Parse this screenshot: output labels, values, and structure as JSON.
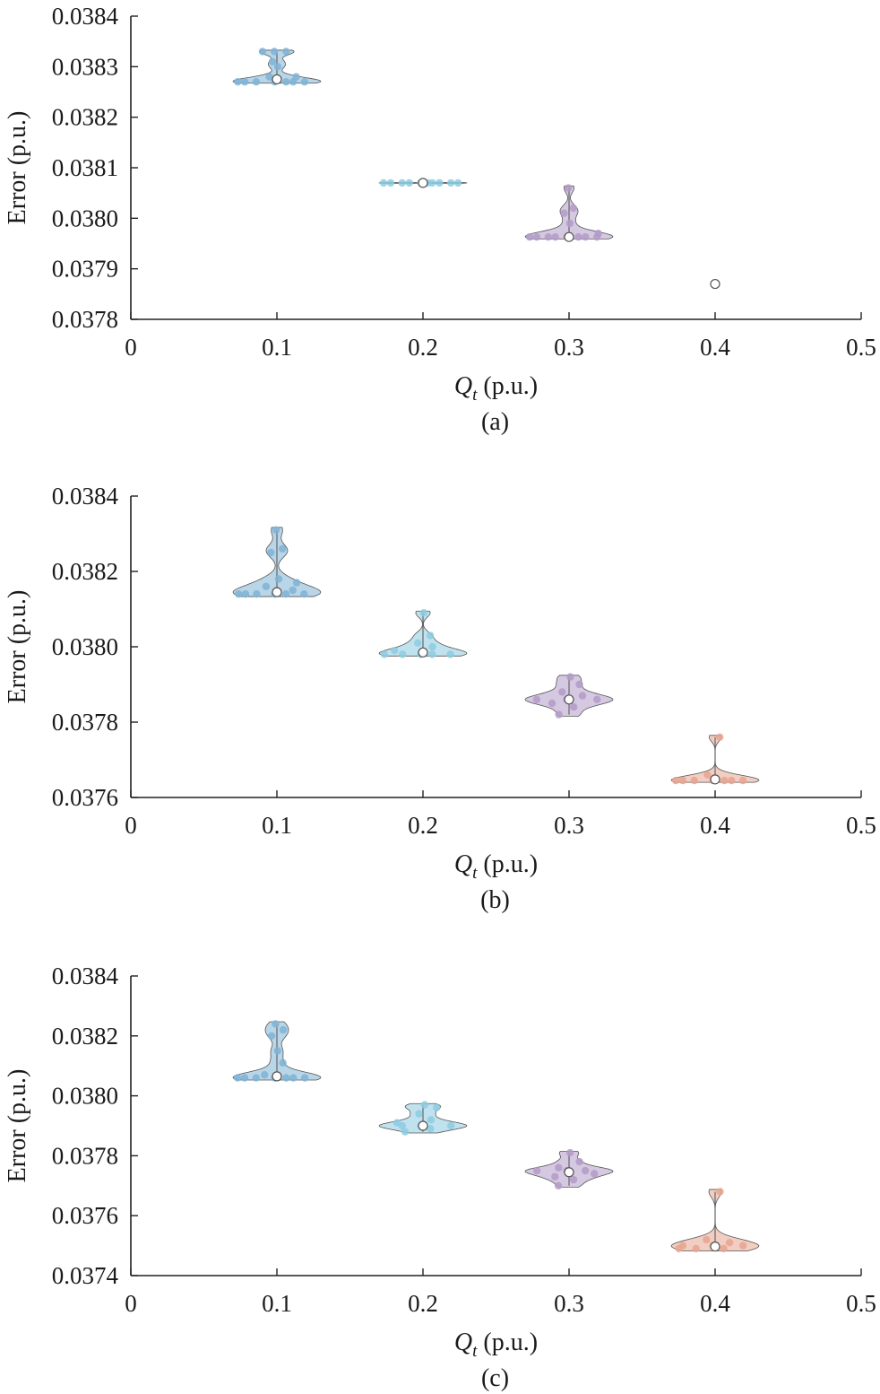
{
  "chart_data": [
    {
      "type": "violin",
      "panel_label": "(a)",
      "xlabel_symbol": "Q",
      "xlabel_subscript": "t",
      "xlabel_unit": " (p.u.)",
      "ylabel": "Error (p.u.)",
      "xlim": [
        0,
        0.5
      ],
      "ylim": [
        0.0378,
        0.0384
      ],
      "xticks": [
        "0",
        "0.1",
        "0.2",
        "0.3",
        "0.4",
        "0.5"
      ],
      "yticks": [
        "0.0378",
        "0.0379",
        "0.0380",
        "0.0381",
        "0.0382",
        "0.0383",
        "0.0384"
      ],
      "series": [
        {
          "x": 0.1,
          "color": "#7fb3d5",
          "median": 0.038275,
          "points": [
            0.03827,
            0.03827,
            0.03827,
            0.03827,
            0.03827,
            0.03827,
            0.03827,
            0.03828,
            0.03828,
            0.0383,
            0.03831,
            0.03833,
            0.03833,
            0.03833
          ]
        },
        {
          "x": 0.2,
          "color": "#8ccbe0",
          "median": 0.03807,
          "points": [
            0.03807,
            0.03807,
            0.03807,
            0.03807,
            0.03807,
            0.03807,
            0.03807,
            0.03807,
            0.03807,
            0.03807
          ]
        },
        {
          "x": 0.3,
          "color": "#b39bc8",
          "median": 0.037963,
          "points": [
            0.037963,
            0.037963,
            0.037963,
            0.037963,
            0.037963,
            0.037963,
            0.037963,
            0.037963,
            0.03797,
            0.03799,
            0.03801,
            0.03802,
            0.03806
          ]
        },
        {
          "x": 0.4,
          "color": "#e8a590",
          "median": 0.03787,
          "points": []
        }
      ]
    },
    {
      "type": "violin",
      "panel_label": "(b)",
      "xlabel_symbol": "Q",
      "xlabel_subscript": "t",
      "xlabel_unit": " (p.u.)",
      "ylabel": "Error (p.u.)",
      "xlim": [
        0,
        0.5
      ],
      "ylim": [
        0.0376,
        0.0384
      ],
      "xticks": [
        "0",
        "0.1",
        "0.2",
        "0.3",
        "0.4",
        "0.5"
      ],
      "yticks": [
        "0.0376",
        "0.0378",
        "0.0380",
        "0.0382",
        "0.0384"
      ],
      "series": [
        {
          "x": 0.1,
          "color": "#7fb3d5",
          "median": 0.038145,
          "points": [
            0.03814,
            0.03814,
            0.03814,
            0.03814,
            0.03814,
            0.03814,
            0.03815,
            0.03816,
            0.03817,
            0.03818,
            0.03825,
            0.03826,
            0.03831
          ]
        },
        {
          "x": 0.2,
          "color": "#8ccbe0",
          "median": 0.037985,
          "points": [
            0.03798,
            0.03798,
            0.03798,
            0.03798,
            0.03798,
            0.03799,
            0.038,
            0.03801,
            0.03803,
            0.03809
          ]
        },
        {
          "x": 0.3,
          "color": "#b39bc8",
          "median": 0.03786,
          "points": [
            0.03782,
            0.03784,
            0.03785,
            0.03786,
            0.03786,
            0.03786,
            0.03787,
            0.03788,
            0.0379,
            0.03792
          ]
        },
        {
          "x": 0.4,
          "color": "#e8a590",
          "median": 0.037648,
          "points": [
            0.037645,
            0.037645,
            0.037645,
            0.037645,
            0.037645,
            0.037645,
            0.037645,
            0.03766,
            0.03776
          ]
        }
      ]
    },
    {
      "type": "violin",
      "panel_label": "(c)",
      "xlabel_symbol": "Q",
      "xlabel_subscript": "t",
      "xlabel_unit": " (p.u.)",
      "ylabel": "Error (p.u.)",
      "xlim": [
        0,
        0.5
      ],
      "ylim": [
        0.0374,
        0.0384
      ],
      "xticks": [
        "0",
        "0.1",
        "0.2",
        "0.3",
        "0.4",
        "0.5"
      ],
      "yticks": [
        "0.0374",
        "0.0376",
        "0.0378",
        "0.0380",
        "0.0382",
        "0.0384"
      ],
      "series": [
        {
          "x": 0.1,
          "color": "#7fb3d5",
          "median": 0.038065,
          "points": [
            0.03806,
            0.03806,
            0.03806,
            0.03806,
            0.03806,
            0.03806,
            0.03806,
            0.03807,
            0.03811,
            0.03815,
            0.0382,
            0.03822,
            0.03824
          ]
        },
        {
          "x": 0.2,
          "color": "#8ccbe0",
          "median": 0.0379,
          "points": [
            0.03788,
            0.03789,
            0.0379,
            0.0379,
            0.0379,
            0.03791,
            0.03792,
            0.03794,
            0.03796,
            0.03797
          ]
        },
        {
          "x": 0.3,
          "color": "#b39bc8",
          "median": 0.037745,
          "points": [
            0.0377,
            0.03772,
            0.03773,
            0.03774,
            0.03775,
            0.03775,
            0.03775,
            0.03776,
            0.03778,
            0.03781
          ]
        },
        {
          "x": 0.4,
          "color": "#e8a590",
          "median": 0.037497,
          "points": [
            0.03749,
            0.03749,
            0.03749,
            0.0375,
            0.0375,
            0.0375,
            0.03751,
            0.03752,
            0.03768
          ]
        }
      ]
    }
  ]
}
